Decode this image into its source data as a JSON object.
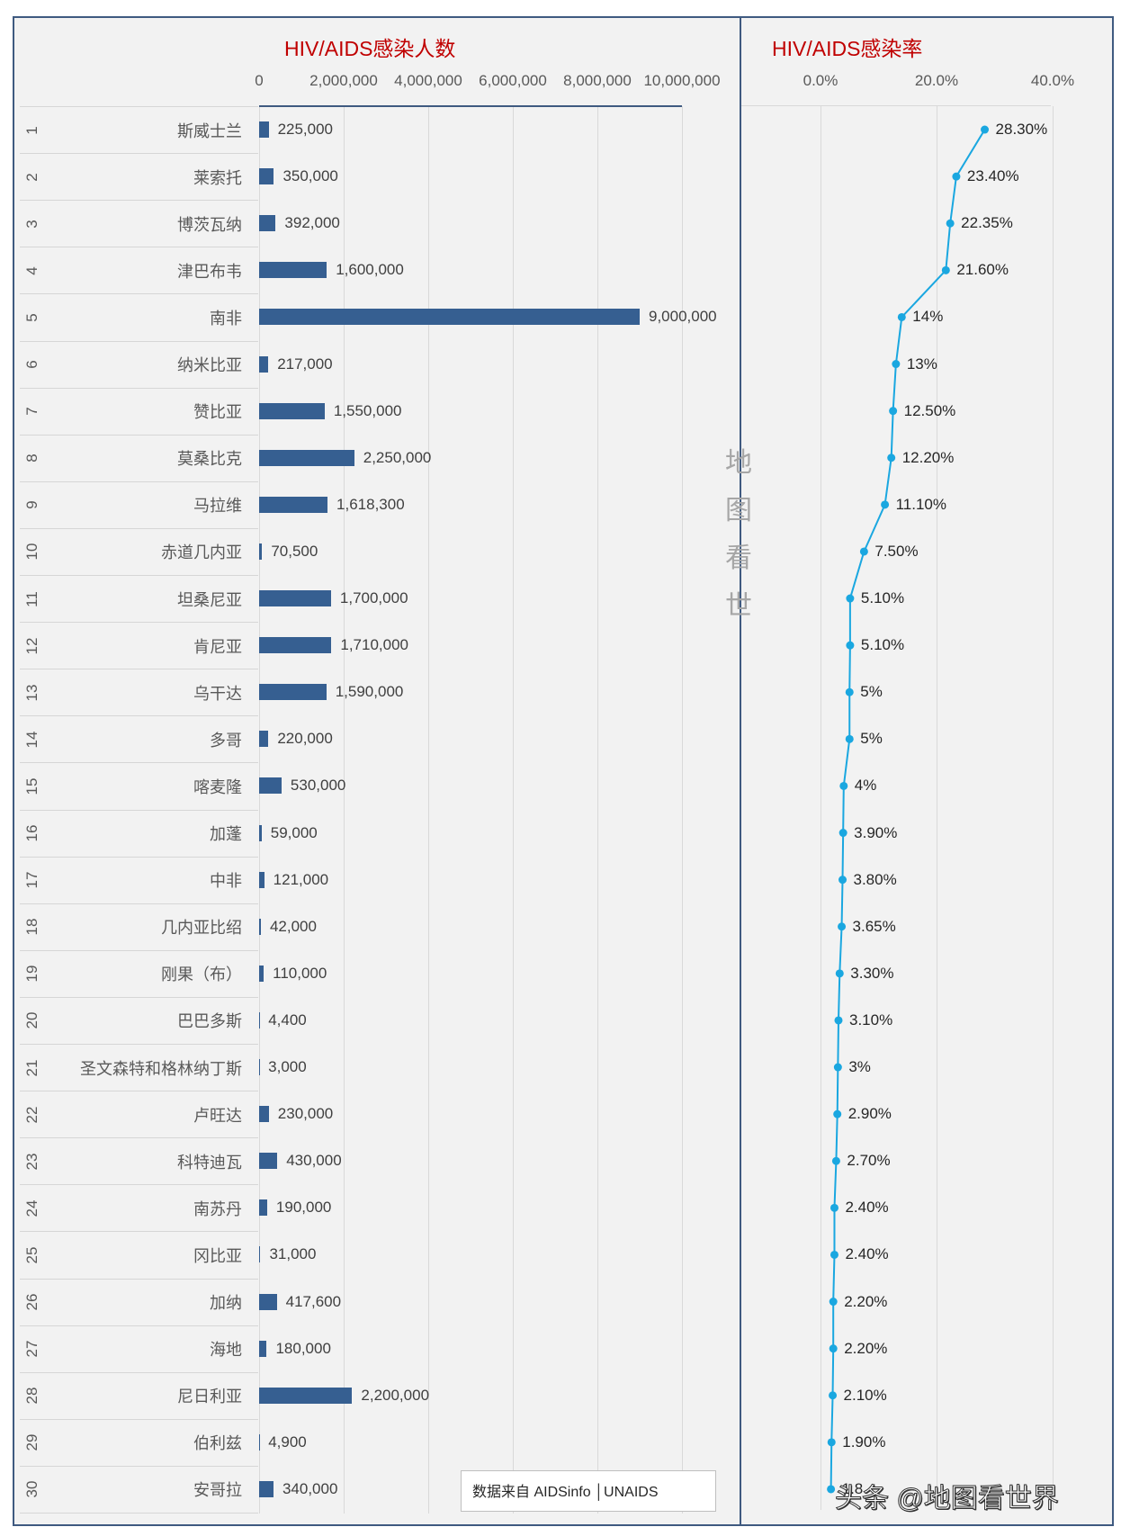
{
  "chart_data": [
    {
      "type": "bar",
      "orientation": "horizontal",
      "title": "HIV/AIDS感染人数",
      "xlabel": "",
      "ylabel": "",
      "xlim": [
        0,
        10000000
      ],
      "x_ticks": [
        "0",
        "2,000,000",
        "4,000,000",
        "6,000,000",
        "8,000,000",
        "10,000,000"
      ],
      "grid": true,
      "categories": [
        "斯威士兰",
        "莱索托",
        "博茨瓦纳",
        "津巴布韦",
        "南非",
        "纳米比亚",
        "赞比亚",
        "莫桑比克",
        "马拉维",
        "赤道几内亚",
        "坦桑尼亚",
        "肯尼亚",
        "乌干达",
        "多哥",
        "喀麦隆",
        "加蓬",
        "中非",
        "几内亚比绍",
        "刚果（布）",
        "巴巴多斯",
        "圣文森特和格林纳丁斯",
        "卢旺达",
        "科特迪瓦",
        "南苏丹",
        "冈比亚",
        "加纳",
        "海地",
        "尼日利亚",
        "伯利兹",
        "安哥拉"
      ],
      "values": [
        225000,
        350000,
        392000,
        1600000,
        9000000,
        217000,
        1550000,
        2250000,
        1618300,
        70500,
        1700000,
        1710000,
        1590000,
        220000,
        530000,
        59000,
        121000,
        42000,
        110000,
        4400,
        3000,
        230000,
        430000,
        190000,
        31000,
        417600,
        180000,
        2200000,
        4900,
        340000
      ],
      "value_labels": [
        "225,000",
        "350,000",
        "392,000",
        "1,600,000",
        "9,000,000",
        "217,000",
        "1,550,000",
        "2,250,000",
        "1,618,300",
        "70,500",
        "1,700,000",
        "1,710,000",
        "1,590,000",
        "220,000",
        "530,000",
        "59,000",
        "121,000",
        "42,000",
        "110,000",
        "4,400",
        "3,000",
        "230,000",
        "430,000",
        "190,000",
        "31,000",
        "417,600",
        "180,000",
        "2,200,000",
        "4,900",
        "340,000"
      ],
      "color": "#365f91"
    },
    {
      "type": "line",
      "orientation": "vertical",
      "title": "HIV/AIDS感染率",
      "xlabel": "",
      "ylabel": "",
      "xlim": [
        0,
        40
      ],
      "x_ticks": [
        "0.0%",
        "20.0%",
        "40.0%"
      ],
      "grid": true,
      "categories": [
        "斯威士兰",
        "莱索托",
        "博茨瓦纳",
        "津巴布韦",
        "南非",
        "纳米比亚",
        "赞比亚",
        "莫桑比克",
        "马拉维",
        "赤道几内亚",
        "坦桑尼亚",
        "肯尼亚",
        "乌干达",
        "多哥",
        "喀麦隆",
        "加蓬",
        "中非",
        "几内亚比绍",
        "刚果（布）",
        "巴巴多斯",
        "圣文森特和格林纳丁斯",
        "卢旺达",
        "科特迪瓦",
        "南苏丹",
        "冈比亚",
        "加纳",
        "海地",
        "尼日利亚",
        "伯利兹",
        "安哥拉"
      ],
      "values": [
        28.3,
        23.4,
        22.35,
        21.6,
        14,
        13,
        12.5,
        12.2,
        11.1,
        7.5,
        5.1,
        5.1,
        5,
        5,
        4,
        3.9,
        3.8,
        3.65,
        3.3,
        3.1,
        3,
        2.9,
        2.7,
        2.4,
        2.4,
        2.2,
        2.2,
        2.1,
        1.9,
        1.8
      ],
      "value_labels": [
        "28.30%",
        "23.40%",
        "22.35%",
        "21.60%",
        "14%",
        "13%",
        "12.50%",
        "12.20%",
        "11.10%",
        "7.50%",
        "5.10%",
        "5.10%",
        "5%",
        "5%",
        "4%",
        "3.90%",
        "3.80%",
        "3.65%",
        "3.30%",
        "3.10%",
        "3%",
        "2.90%",
        "2.70%",
        "2.40%",
        "2.40%",
        "2.20%",
        "2.20%",
        "2.10%",
        "1.90%",
        "1.8"
      ],
      "color": "#1aa7e0"
    }
  ],
  "left_chart": {
    "title": "HIV/AIDS感染人数",
    "ticks": [
      "0",
      "2,000,000",
      "4,000,000",
      "6,000,000",
      "8,000,000",
      "10,000,000"
    ]
  },
  "right_chart": {
    "title": "HIV/AIDS感染率",
    "ticks": [
      "0.0%",
      "20.0%",
      "40.0%"
    ]
  },
  "rows": [
    {
      "rank": "1",
      "name": "斯威士兰",
      "count": 225000,
      "count_label": "225,000",
      "rate": 28.3,
      "rate_label": "28.30%"
    },
    {
      "rank": "2",
      "name": "莱索托",
      "count": 350000,
      "count_label": "350,000",
      "rate": 23.4,
      "rate_label": "23.40%"
    },
    {
      "rank": "3",
      "name": "博茨瓦纳",
      "count": 392000,
      "count_label": "392,000",
      "rate": 22.35,
      "rate_label": "22.35%"
    },
    {
      "rank": "4",
      "name": "津巴布韦",
      "count": 1600000,
      "count_label": "1,600,000",
      "rate": 21.6,
      "rate_label": "21.60%"
    },
    {
      "rank": "5",
      "name": "南非",
      "count": 9000000,
      "count_label": "9,000,000",
      "rate": 14,
      "rate_label": "14%"
    },
    {
      "rank": "6",
      "name": "纳米比亚",
      "count": 217000,
      "count_label": "217,000",
      "rate": 13,
      "rate_label": "13%"
    },
    {
      "rank": "7",
      "name": "赞比亚",
      "count": 1550000,
      "count_label": "1,550,000",
      "rate": 12.5,
      "rate_label": "12.50%"
    },
    {
      "rank": "8",
      "name": "莫桑比克",
      "count": 2250000,
      "count_label": "2,250,000",
      "rate": 12.2,
      "rate_label": "12.20%"
    },
    {
      "rank": "9",
      "name": "马拉维",
      "count": 1618300,
      "count_label": "1,618,300",
      "rate": 11.1,
      "rate_label": "11.10%"
    },
    {
      "rank": "10",
      "name": "赤道几内亚",
      "count": 70500,
      "count_label": "70,500",
      "rate": 7.5,
      "rate_label": "7.50%"
    },
    {
      "rank": "11",
      "name": "坦桑尼亚",
      "count": 1700000,
      "count_label": "1,700,000",
      "rate": 5.1,
      "rate_label": "5.10%"
    },
    {
      "rank": "12",
      "name": "肯尼亚",
      "count": 1710000,
      "count_label": "1,710,000",
      "rate": 5.1,
      "rate_label": "5.10%"
    },
    {
      "rank": "13",
      "name": "乌干达",
      "count": 1590000,
      "count_label": "1,590,000",
      "rate": 5,
      "rate_label": "5%"
    },
    {
      "rank": "14",
      "name": "多哥",
      "count": 220000,
      "count_label": "220,000",
      "rate": 5,
      "rate_label": "5%"
    },
    {
      "rank": "15",
      "name": "喀麦隆",
      "count": 530000,
      "count_label": "530,000",
      "rate": 4,
      "rate_label": "4%"
    },
    {
      "rank": "16",
      "name": "加蓬",
      "count": 59000,
      "count_label": "59,000",
      "rate": 3.9,
      "rate_label": "3.90%"
    },
    {
      "rank": "17",
      "name": "中非",
      "count": 121000,
      "count_label": "121,000",
      "rate": 3.8,
      "rate_label": "3.80%"
    },
    {
      "rank": "18",
      "name": "几内亚比绍",
      "count": 42000,
      "count_label": "42,000",
      "rate": 3.65,
      "rate_label": "3.65%"
    },
    {
      "rank": "19",
      "name": "刚果（布）",
      "count": 110000,
      "count_label": "110,000",
      "rate": 3.3,
      "rate_label": "3.30%"
    },
    {
      "rank": "20",
      "name": "巴巴多斯",
      "count": 4400,
      "count_label": "4,400",
      "rate": 3.1,
      "rate_label": "3.10%"
    },
    {
      "rank": "21",
      "name": "圣文森特和格林纳丁斯",
      "count": 3000,
      "count_label": "3,000",
      "rate": 3,
      "rate_label": "3%"
    },
    {
      "rank": "22",
      "name": "卢旺达",
      "count": 230000,
      "count_label": "230,000",
      "rate": 2.9,
      "rate_label": "2.90%"
    },
    {
      "rank": "23",
      "name": "科特迪瓦",
      "count": 430000,
      "count_label": "430,000",
      "rate": 2.7,
      "rate_label": "2.70%"
    },
    {
      "rank": "24",
      "name": "南苏丹",
      "count": 190000,
      "count_label": "190,000",
      "rate": 2.4,
      "rate_label": "2.40%"
    },
    {
      "rank": "25",
      "name": "冈比亚",
      "count": 31000,
      "count_label": "31,000",
      "rate": 2.4,
      "rate_label": "2.40%"
    },
    {
      "rank": "26",
      "name": "加纳",
      "count": 417600,
      "count_label": "417,600",
      "rate": 2.2,
      "rate_label": "2.20%"
    },
    {
      "rank": "27",
      "name": "海地",
      "count": 180000,
      "count_label": "180,000",
      "rate": 2.2,
      "rate_label": "2.20%"
    },
    {
      "rank": "28",
      "name": "尼日利亚",
      "count": 2200000,
      "count_label": "2,200,000",
      "rate": 2.1,
      "rate_label": "2.10%"
    },
    {
      "rank": "29",
      "name": "伯利兹",
      "count": 4900,
      "count_label": "4,900",
      "rate": 1.9,
      "rate_label": "1.90%"
    },
    {
      "rank": "30",
      "name": "安哥拉",
      "count": 340000,
      "count_label": "340,000",
      "rate": 1.8,
      "rate_label": "1.8"
    }
  ],
  "source_note": "数据来自 AIDSinfo │UNAIDS",
  "watermark_vertical": [
    "地",
    "图",
    "看",
    "世"
  ],
  "watermark": "头条 @地图看世界",
  "colors": {
    "title": "#c00000",
    "bar": "#365f91",
    "line": "#1aa7e0",
    "frame": "#3f5a80",
    "background": "#f2f2f2"
  }
}
